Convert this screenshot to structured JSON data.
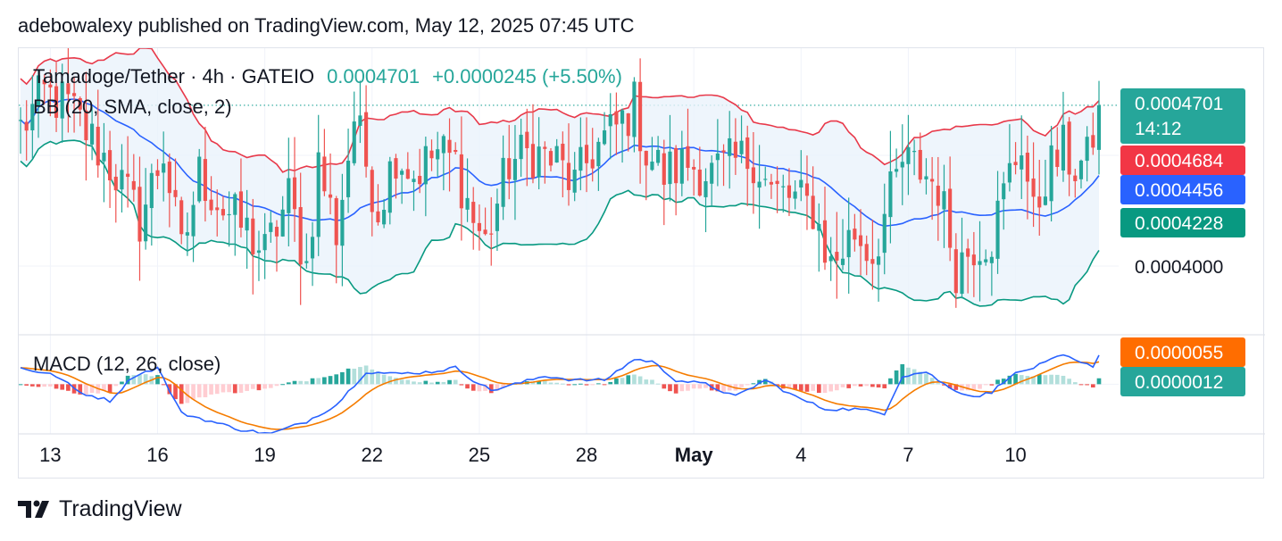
{
  "attribution": "adebowalexy published on TradingView.com, May 12, 2025 07:45 UTC",
  "footer": {
    "brand": "TradingView",
    "logo_icon": "tradingview-logo-icon"
  },
  "colors": {
    "up": "#26a69a",
    "down": "#ef5350",
    "bb_upper": "#e8394a",
    "bb_basis": "#2962ff",
    "bb_lower": "#089981",
    "bb_fill": "#eaf3fb",
    "macd": "#2962ff",
    "signal": "#f57c00",
    "hist_up_strong": "#26a69a",
    "hist_up_weak": "#b2dfdb",
    "hist_down_strong": "#ef5350",
    "hist_down_weak": "#ffcdd2"
  },
  "chart_data": {
    "type": "candlestick",
    "symbol_line": "Tamadoge/Tether · 4h · GATEIO",
    "price": "0.0004701",
    "change": "+0.0000245 (+5.50%)",
    "bb_label": "BB (20, SMA, close, 2)",
    "macd_label": "MACD (12, 26, close)",
    "price_tags": [
      {
        "value": "0.0004701",
        "sub": "14:12",
        "color": "#26a69a",
        "name": "last-price"
      },
      {
        "value": "0.0004684",
        "color": "#f23645",
        "name": "bb-upper"
      },
      {
        "value": "0.0004456",
        "color": "#2962ff",
        "name": "bb-basis"
      },
      {
        "value": "0.0004228",
        "color": "#089981",
        "name": "bb-lower"
      }
    ],
    "price_axis_tick": "0.0004000",
    "macd_tags": [
      {
        "value": "0.0000055",
        "color": "#ff6d00",
        "name": "macd-signal"
      },
      {
        "value": "0.0000012",
        "color": "#26a69a",
        "name": "macd-histogram"
      }
    ],
    "x_ticks": [
      {
        "label": "13",
        "index": 5,
        "bold": false
      },
      {
        "label": "16",
        "index": 23,
        "bold": false
      },
      {
        "label": "19",
        "index": 41,
        "bold": false
      },
      {
        "label": "22",
        "index": 59,
        "bold": false
      },
      {
        "label": "25",
        "index": 77,
        "bold": false
      },
      {
        "label": "28",
        "index": 95,
        "bold": false
      },
      {
        "label": "May",
        "index": 113,
        "bold": true
      },
      {
        "label": "4",
        "index": 131,
        "bold": false
      },
      {
        "label": "7",
        "index": 149,
        "bold": false
      },
      {
        "label": "10",
        "index": 167,
        "bold": false
      }
    ],
    "price_range": [
      0.00037,
      0.000495
    ],
    "candle_count": 182,
    "price_path": [
      [
        0,
        0.00046
      ],
      [
        4,
        0.000475
      ],
      [
        8,
        0.00047
      ],
      [
        12,
        0.000455
      ],
      [
        16,
        0.00044
      ],
      [
        20,
        0.00042
      ],
      [
        24,
        0.00045
      ],
      [
        27,
        0.000405
      ],
      [
        30,
        0.00044
      ],
      [
        34,
        0.000425
      ],
      [
        38,
        0.000415
      ],
      [
        41,
        0.000405
      ],
      [
        45,
        0.00043
      ],
      [
        48,
        0.0004
      ],
      [
        50,
        0.000445
      ],
      [
        53,
        0.000415
      ],
      [
        56,
        0.000465
      ],
      [
        60,
        0.000425
      ],
      [
        63,
        0.00045
      ],
      [
        66,
        0.00044
      ],
      [
        70,
        0.00045
      ],
      [
        73,
        0.000445
      ],
      [
        76,
        0.00042
      ],
      [
        78,
        0.00041
      ],
      [
        82,
        0.000445
      ],
      [
        86,
        0.00045
      ],
      [
        90,
        0.000445
      ],
      [
        93,
        0.000435
      ],
      [
        96,
        0.00045
      ],
      [
        100,
        0.00046
      ],
      [
        103,
        0.00047
      ],
      [
        105,
        0.00045
      ],
      [
        108,
        0.00044
      ],
      [
        112,
        0.000445
      ],
      [
        116,
        0.00044
      ],
      [
        120,
        0.000445
      ],
      [
        123,
        0.000448
      ],
      [
        126,
        0.000432
      ],
      [
        129,
        0.00043
      ],
      [
        133,
        0.000425
      ],
      [
        136,
        0.0004
      ],
      [
        140,
        0.000415
      ],
      [
        143,
        0.000405
      ],
      [
        146,
        0.00043
      ],
      [
        148,
        0.000445
      ],
      [
        151,
        0.000442
      ],
      [
        154,
        0.000435
      ],
      [
        157,
        0.0004
      ],
      [
        160,
        0.00041
      ],
      [
        163,
        0.000413
      ],
      [
        166,
        0.00044
      ],
      [
        168,
        0.000455
      ],
      [
        170,
        0.00042
      ],
      [
        172,
        0.00044
      ],
      [
        175,
        0.00045
      ],
      [
        177,
        0.000443
      ],
      [
        179,
        0.000445
      ],
      [
        181,
        0.0004701
      ]
    ],
    "macd_range": [
      -1.2e-05,
      1e-05
    ],
    "macd_path": [
      [
        0,
        4e-06
      ],
      [
        6,
        2e-06
      ],
      [
        10,
        -2e-06
      ],
      [
        15,
        -4e-06
      ],
      [
        19,
        2e-06
      ],
      [
        23,
        4e-06
      ],
      [
        27,
        -7e-06
      ],
      [
        32,
        -9e-06
      ],
      [
        37,
        -1.1e-05
      ],
      [
        42,
        -1.2e-05
      ],
      [
        48,
        -9e-06
      ],
      [
        53,
        -5e-06
      ],
      [
        58,
        3e-06
      ],
      [
        63,
        2.5e-06
      ],
      [
        69,
        3e-06
      ],
      [
        73,
        4e-06
      ],
      [
        76,
        1e-06
      ],
      [
        79,
        -1.5e-06
      ],
      [
        83,
        0.0
      ],
      [
        88,
        2e-06
      ],
      [
        93,
        1e-06
      ],
      [
        98,
        1e-06
      ],
      [
        103,
        6e-06
      ],
      [
        106,
        5.5e-06
      ],
      [
        110,
        1e-06
      ],
      [
        115,
        0.0
      ],
      [
        120,
        -3e-06
      ],
      [
        125,
        1e-06
      ],
      [
        130,
        -3e-06
      ],
      [
        135,
        -6e-06
      ],
      [
        140,
        -6e-06
      ],
      [
        145,
        -7e-06
      ],
      [
        148,
        2e-06
      ],
      [
        152,
        3e-06
      ],
      [
        156,
        -1e-06
      ],
      [
        160,
        -3e-06
      ],
      [
        163,
        -2e-06
      ],
      [
        166,
        2e-06
      ],
      [
        170,
        4e-06
      ],
      [
        175,
        7e-06
      ],
      [
        178,
        5e-06
      ],
      [
        180,
        4.5e-06
      ],
      [
        181,
        7e-06
      ]
    ],
    "bb_period": 20,
    "bb_mult": 2,
    "macd_fast": 12,
    "macd_slow": 26,
    "signal_period": 9,
    "grid": true
  }
}
